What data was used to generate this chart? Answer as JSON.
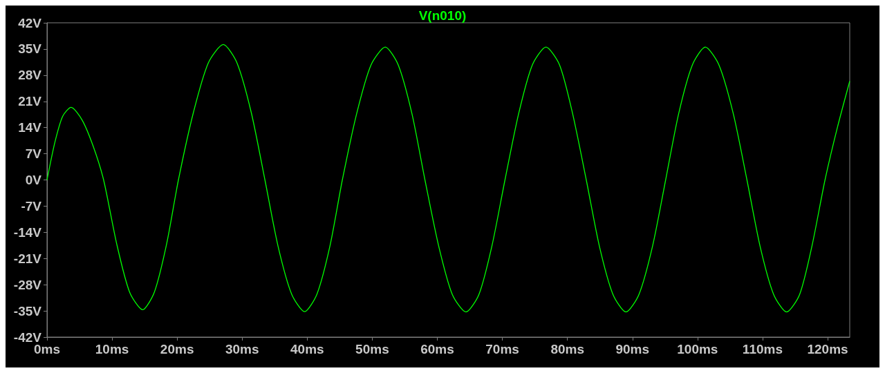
{
  "chart_data": {
    "type": "line",
    "title": "V(n010)",
    "xlim": [
      0,
      123.4
    ],
    "ylim": [
      -42,
      42
    ],
    "xticks": [
      {
        "value": 0,
        "label": "0ms"
      },
      {
        "value": 10,
        "label": "10ms"
      },
      {
        "value": 20,
        "label": "20ms"
      },
      {
        "value": 30,
        "label": "30ms"
      },
      {
        "value": 40,
        "label": "40ms"
      },
      {
        "value": 50,
        "label": "50ms"
      },
      {
        "value": 60,
        "label": "60ms"
      },
      {
        "value": 70,
        "label": "70ms"
      },
      {
        "value": 80,
        "label": "80ms"
      },
      {
        "value": 90,
        "label": "90ms"
      },
      {
        "value": 100,
        "label": "100ms"
      },
      {
        "value": 110,
        "label": "110ms"
      },
      {
        "value": 120,
        "label": "120ms"
      }
    ],
    "yticks": [
      {
        "value": -42,
        "label": "-42V"
      },
      {
        "value": -35,
        "label": "-35V"
      },
      {
        "value": -28,
        "label": "-28V"
      },
      {
        "value": -21,
        "label": "-21V"
      },
      {
        "value": -14,
        "label": "-14V"
      },
      {
        "value": -7,
        "label": "-7V"
      },
      {
        "value": 0,
        "label": "0V"
      },
      {
        "value": 7,
        "label": "7V"
      },
      {
        "value": 14,
        "label": "14V"
      },
      {
        "value": 21,
        "label": "21V"
      },
      {
        "value": 28,
        "label": "28V"
      },
      {
        "value": 35,
        "label": "35V"
      },
      {
        "value": 42,
        "label": "42V"
      }
    ],
    "marker": "none",
    "line_style": "solid",
    "series": [
      {
        "color": "#00ff00",
        "x": [
          0,
          1.2,
          2.4,
          3.7,
          5.4,
          7.1,
          8.7,
          10.7,
          12.7,
          14.7,
          16.5,
          18.4,
          20.2,
          22.5,
          24.8,
          27.1,
          29.2,
          31.4,
          33.5,
          35.5,
          37.6,
          39.6,
          41.5,
          43.5,
          45.4,
          47.6,
          49.8,
          52,
          54,
          56.1,
          58.1,
          60.2,
          62.3,
          64.4,
          66.4,
          68.4,
          70.4,
          72.5,
          74.6,
          76.7,
          78.8,
          80.8,
          82.9,
          84.9,
          87,
          89,
          91,
          93.1,
          95.1,
          97.1,
          99.2,
          101.2,
          103.3,
          105.5,
          107.6,
          109.6,
          111.7,
          113.7,
          115.7,
          117.6,
          119.6,
          121.5,
          123.4
        ],
        "values": [
          0,
          10,
          17,
          19.4,
          16,
          9,
          0,
          -17,
          -30,
          -34.7,
          -30,
          -17,
          0,
          18,
          31.3,
          36.2,
          31.3,
          18,
          0,
          -17.6,
          -30.5,
          -35.2,
          -30.5,
          -17.6,
          0,
          17.7,
          30.7,
          35.5,
          30.7,
          17.7,
          0,
          -17.6,
          -30.6,
          -35.3,
          -30.6,
          -17.6,
          0,
          17.7,
          30.7,
          35.5,
          30.7,
          17.7,
          0,
          -17.6,
          -30.6,
          -35.3,
          -30.6,
          -17.6,
          0,
          17.7,
          30.7,
          35.5,
          30.7,
          17.7,
          0,
          -17.6,
          -30.6,
          -35.3,
          -30.6,
          -17.6,
          0,
          14,
          26.4
        ]
      }
    ]
  }
}
